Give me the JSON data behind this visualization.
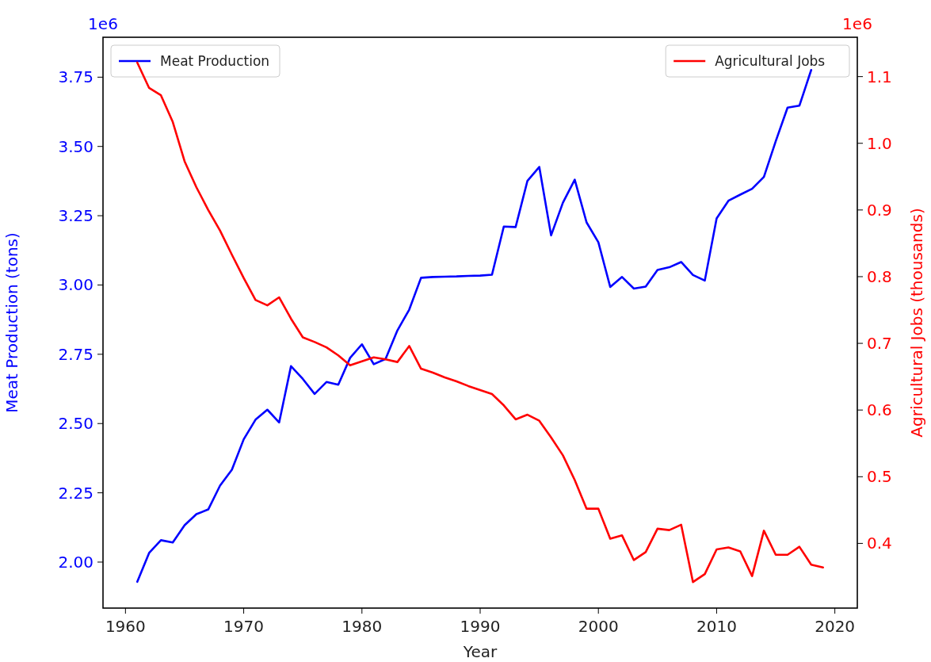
{
  "chart_data": {
    "type": "line",
    "xlabel": "Year",
    "ylabel": "Meat Production (tons)",
    "y2label": "Agricultural Jobs (thousands)",
    "x": [
      1961,
      1962,
      1963,
      1964,
      1965,
      1966,
      1967,
      1968,
      1969,
      1970,
      1971,
      1972,
      1973,
      1974,
      1975,
      1976,
      1977,
      1978,
      1979,
      1980,
      1981,
      1982,
      1983,
      1984,
      1985,
      1986,
      1987,
      1988,
      1989,
      1990,
      1991,
      1992,
      1993,
      1994,
      1995,
      1996,
      1997,
      1998,
      1999,
      2000,
      2001,
      2002,
      2003,
      2004,
      2005,
      2006,
      2007,
      2008,
      2009,
      2010,
      2011,
      2012,
      2013,
      2014,
      2015,
      2016,
      2017,
      2018,
      2019
    ],
    "series": [
      {
        "name": "Meat Production",
        "color": "#0000ff",
        "values": [
          1.929,
          2.033,
          2.079,
          2.071,
          2.133,
          2.173,
          2.19,
          2.276,
          2.333,
          2.443,
          2.514,
          2.55,
          2.504,
          2.707,
          2.661,
          2.607,
          2.65,
          2.64,
          2.737,
          2.786,
          2.714,
          2.733,
          2.836,
          2.911,
          3.026,
          3.029,
          3.03,
          3.031,
          3.033,
          3.034,
          3.037,
          3.211,
          3.209,
          3.376,
          3.426,
          3.179,
          3.297,
          3.38,
          3.226,
          3.154,
          2.993,
          3.029,
          2.987,
          2.994,
          3.054,
          3.064,
          3.083,
          3.036,
          3.016,
          3.24,
          3.304,
          3.326,
          3.347,
          3.39,
          3.519,
          3.64,
          3.647,
          3.776,
          null
        ]
      },
      {
        "name": "Agricultural Jobs",
        "color": "#ff0000",
        "axis": "y2",
        "values": [
          1.121,
          1.083,
          1.072,
          1.032,
          0.973,
          0.934,
          0.9,
          0.869,
          0.833,
          0.798,
          0.765,
          0.757,
          0.769,
          0.737,
          0.709,
          0.702,
          0.694,
          0.682,
          0.667,
          0.673,
          0.679,
          0.676,
          0.672,
          0.696,
          0.662,
          0.656,
          0.649,
          0.643,
          0.636,
          0.63,
          0.624,
          0.607,
          0.586,
          0.593,
          0.584,
          0.559,
          0.532,
          0.495,
          0.452,
          0.452,
          0.407,
          0.412,
          0.375,
          0.387,
          0.422,
          0.42,
          0.428,
          0.342,
          0.354,
          0.391,
          0.394,
          0.388,
          0.351,
          0.419,
          0.383,
          0.383,
          0.395,
          0.368,
          0.364
        ]
      }
    ],
    "xlim": [
      1958.1,
      2021.9
    ],
    "xticks": [
      1960,
      1970,
      1980,
      1990,
      2000,
      2010,
      2020
    ],
    "ylim": [
      1.834,
      3.894
    ],
    "yticks": [
      {
        "value": 2,
        "label": "2.00"
      },
      {
        "value": 2.25,
        "label": "2.25"
      },
      {
        "value": 2.5,
        "label": "2.50"
      },
      {
        "value": 2.75,
        "label": "2.75"
      },
      {
        "value": 3,
        "label": "3.00"
      },
      {
        "value": 3.25,
        "label": "3.25"
      },
      {
        "value": 3.5,
        "label": "3.50"
      },
      {
        "value": 3.75,
        "label": "3.75"
      }
    ],
    "y2lim": [
      0.303,
      1.159
    ],
    "y2ticks": [
      {
        "value": 0.4,
        "label": "0.4"
      },
      {
        "value": 0.5,
        "label": "0.5"
      },
      {
        "value": 0.6,
        "label": "0.6"
      },
      {
        "value": 0.7,
        "label": "0.7"
      },
      {
        "value": 0.8,
        "label": "0.8"
      },
      {
        "value": 0.9,
        "label": "0.9"
      },
      {
        "value": 1,
        "label": "1.0"
      },
      {
        "value": 1.1,
        "label": "1.1"
      }
    ],
    "annotations": [
      "1e6",
      "1e6"
    ],
    "legend": "top",
    "grid": false,
    "marker": "none",
    "line_style": "solid"
  }
}
